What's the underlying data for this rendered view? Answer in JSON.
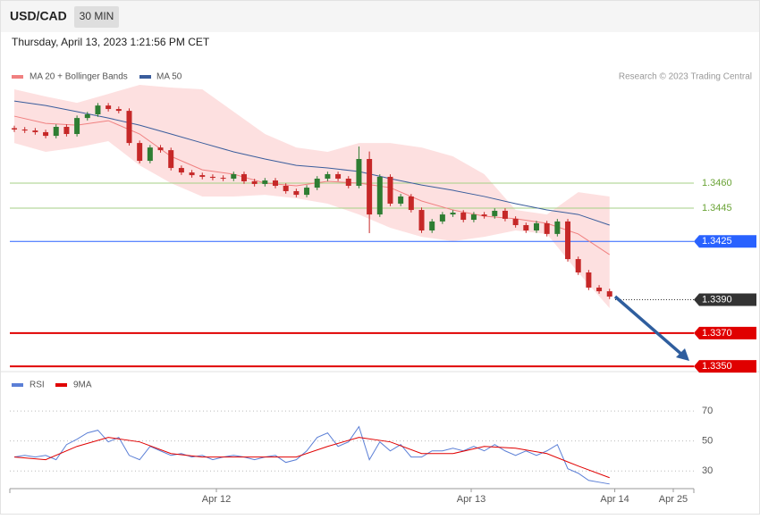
{
  "header": {
    "symbol": "USD/CAD",
    "interval": "30 MIN",
    "datetime": "Thursday, April 13, 2023 1:21:56 PM CET"
  },
  "chart_data": [
    {
      "type": "candlestick",
      "source": "Research © 2023 Trading Central",
      "ylim": [
        1.33474,
        1.3519
      ],
      "xlim": [
        -0.43,
        65.07
      ],
      "up_color": "#2e7d32",
      "down_color": "#c62828",
      "candles": {
        "open": [
          1.3493,
          1.34922,
          1.34916,
          1.34906,
          1.34884,
          1.34938,
          1.34895,
          1.34991,
          1.35013,
          1.35066,
          1.35045,
          1.35034,
          1.34841,
          1.34734,
          1.34814,
          1.34798,
          1.34691,
          1.34664,
          1.34648,
          1.34638,
          1.34632,
          1.34627,
          1.34654,
          1.34611,
          1.34595,
          1.34616,
          1.34584,
          1.34552,
          1.3453,
          1.34573,
          1.34627,
          1.34654,
          1.34627,
          1.34584,
          1.34745,
          1.34412,
          1.34638,
          1.34477,
          1.3452,
          1.34439,
          1.34316,
          1.3437,
          1.34412,
          1.34423,
          1.3438,
          1.34412,
          1.34402,
          1.34434,
          1.34386,
          1.34348,
          1.34316,
          1.34359,
          1.34295,
          1.3437,
          1.34144,
          1.34064,
          1.33973,
          1.33951
        ],
        "high": [
          1.34945,
          1.34937,
          1.34931,
          1.34921,
          1.34953,
          1.34953,
          1.35006,
          1.35028,
          1.35081,
          1.35081,
          1.3506,
          1.35049,
          1.34856,
          1.34829,
          1.34829,
          1.34813,
          1.34706,
          1.34679,
          1.34663,
          1.34653,
          1.34647,
          1.34669,
          1.34669,
          1.34626,
          1.34631,
          1.34631,
          1.34599,
          1.34567,
          1.34588,
          1.34642,
          1.34669,
          1.34669,
          1.34642,
          1.3482,
          1.3479,
          1.34653,
          1.34653,
          1.34535,
          1.34535,
          1.34454,
          1.34385,
          1.34427,
          1.34438,
          1.34438,
          1.34427,
          1.34427,
          1.34449,
          1.34449,
          1.34401,
          1.34363,
          1.34374,
          1.34374,
          1.34385,
          1.34385,
          1.34159,
          1.34079,
          1.33988,
          1.33966
        ],
        "low": [
          1.34907,
          1.34901,
          1.34891,
          1.34869,
          1.34869,
          1.3488,
          1.3488,
          1.34976,
          1.34998,
          1.3503,
          1.35019,
          1.34826,
          1.34719,
          1.34719,
          1.34783,
          1.34676,
          1.34649,
          1.34633,
          1.34623,
          1.34617,
          1.34612,
          1.34612,
          1.34596,
          1.3458,
          1.3458,
          1.34569,
          1.34537,
          1.34515,
          1.34515,
          1.34558,
          1.34612,
          1.34612,
          1.34569,
          1.34569,
          1.343,
          1.34397,
          1.34462,
          1.34462,
          1.34424,
          1.34301,
          1.34301,
          1.34355,
          1.34397,
          1.34365,
          1.34365,
          1.34387,
          1.34387,
          1.34371,
          1.34333,
          1.34301,
          1.34301,
          1.3428,
          1.3428,
          1.34129,
          1.34049,
          1.33958,
          1.33936,
          1.33904
        ],
        "close": [
          1.34922,
          1.34916,
          1.34906,
          1.34884,
          1.34938,
          1.34895,
          1.34991,
          1.35013,
          1.35066,
          1.35045,
          1.35034,
          1.34841,
          1.34734,
          1.34814,
          1.34798,
          1.34691,
          1.34664,
          1.34648,
          1.34638,
          1.34632,
          1.34627,
          1.34654,
          1.34611,
          1.34595,
          1.34616,
          1.34584,
          1.34552,
          1.3453,
          1.34573,
          1.34627,
          1.34654,
          1.34627,
          1.34584,
          1.34745,
          1.34412,
          1.34638,
          1.34477,
          1.3452,
          1.34439,
          1.34316,
          1.3437,
          1.34412,
          1.34423,
          1.3438,
          1.34412,
          1.34402,
          1.34434,
          1.34386,
          1.34348,
          1.34316,
          1.34359,
          1.34295,
          1.3437,
          1.34144,
          1.34064,
          1.33973,
          1.33951,
          1.33919
        ]
      },
      "overlay_x": [
        0,
        3,
        6,
        9,
        12,
        15,
        18,
        21,
        24,
        27,
        30,
        33,
        36,
        39,
        42,
        45,
        48,
        51,
        54,
        57
      ],
      "bands": {
        "color": "#fde0e0",
        "upper": [
          1.35163,
          1.3512,
          1.35082,
          1.35136,
          1.3519,
          1.35174,
          1.35163,
          1.35029,
          1.34895,
          1.34814,
          1.34788,
          1.34841,
          1.34841,
          1.34814,
          1.34761,
          1.34654,
          1.34439,
          1.34412,
          1.34546,
          1.3452
        ],
        "lower": [
          1.34841,
          1.34788,
          1.34814,
          1.34852,
          1.34707,
          1.346,
          1.3452,
          1.3452,
          1.3453,
          1.34509,
          1.34477,
          1.34412,
          1.34332,
          1.34278,
          1.34252,
          1.34278,
          1.34316,
          1.34295,
          1.34064,
          1.3385
        ]
      },
      "series": [
        {
          "name": "MA 20 + Bollinger Bands",
          "color": "#f08080",
          "values": [
            1.35002,
            1.34959,
            1.34948,
            1.34975,
            1.34895,
            1.34761,
            1.3468,
            1.34654,
            1.346,
            1.34584,
            1.34611,
            1.346,
            1.34573,
            1.34493,
            1.34439,
            1.34402,
            1.34386,
            1.34359,
            1.34295,
            1.34171
          ]
        },
        {
          "name": "MA 50",
          "color": "#3a5d9c",
          "values": [
            1.35093,
            1.35066,
            1.35029,
            1.34991,
            1.34948,
            1.34895,
            1.34841,
            1.34788,
            1.34745,
            1.34707,
            1.34691,
            1.3467,
            1.34627,
            1.34589,
            1.34557,
            1.3452,
            1.34477,
            1.34439,
            1.34412,
            1.34348
          ]
        }
      ],
      "levels": [
        {
          "value": 1.346,
          "label": "1.3460",
          "color": "#a5cf85",
          "text_color": "#6aa336",
          "boxed": false,
          "style": "solid"
        },
        {
          "value": 1.3445,
          "label": "1.3445",
          "color": "#a5cf85",
          "text_color": "#6aa336",
          "boxed": false,
          "style": "solid"
        },
        {
          "value": 1.3425,
          "label": "1.3425",
          "color": "#2962ff",
          "text_color": "#ffffff",
          "boxed": true,
          "style": "solid"
        },
        {
          "value": 1.339,
          "label": "1.3390",
          "color": "#333333",
          "text_color": "#ffffff",
          "boxed": true,
          "style": "dotted"
        },
        {
          "value": 1.337,
          "label": "1.3370",
          "color": "#e00000",
          "text_color": "#ffffff",
          "boxed": true,
          "style": "thick"
        },
        {
          "value": 1.335,
          "label": "1.3350",
          "color": "#e00000",
          "text_color": "#ffffff",
          "boxed": true,
          "style": "thick"
        }
      ]
    },
    {
      "type": "line",
      "ylim": [
        20,
        82
      ],
      "xlim": [
        -0.43,
        65.07
      ],
      "yticks": [
        70,
        50,
        30
      ],
      "grid": true,
      "xticks": [
        {
          "value": 19.35,
          "label": "Apr 12"
        },
        {
          "value": 43.75,
          "label": "Apr 13"
        },
        {
          "value": 57.5,
          "label": "Apr 14"
        },
        {
          "value": 63.1,
          "label": "Apr 25"
        }
      ],
      "series": [
        {
          "name": "RSI",
          "color": "#5b7fd6",
          "values": [
            39.3,
            40.4,
            39.3,
            40.4,
            37.5,
            47.6,
            51.2,
            55.4,
            57.2,
            49.4,
            52.4,
            40.4,
            37.5,
            46.4,
            43.4,
            40.4,
            41.6,
            39.3,
            40.4,
            37.5,
            39.3,
            40.4,
            39.3,
            37.5,
            39.3,
            40.4,
            35.7,
            37.5,
            43.4,
            52.4,
            55.4,
            46.4,
            49.4,
            59.6,
            37.5,
            49.4,
            43.4,
            47.6,
            39.3,
            39.3,
            43.4,
            43.4,
            45.2,
            43.4,
            46.4,
            43.4,
            47.6,
            43.4,
            40.4,
            43.4,
            40.4,
            43.4,
            47.6,
            31.5,
            28.5,
            23.7,
            22.5,
            21.3
          ]
        },
        {
          "name": "9MA",
          "color": "#e00000",
          "x": [
            0,
            3,
            6,
            9,
            12,
            15,
            18,
            21,
            24,
            27,
            30,
            33,
            36,
            39,
            42,
            45,
            48,
            51,
            54,
            57
          ],
          "values": [
            39.3,
            37.5,
            46.4,
            52.4,
            49.4,
            41.6,
            39.3,
            39.3,
            39.3,
            39.3,
            46.4,
            52.4,
            49.4,
            41.6,
            41.6,
            46.4,
            45.2,
            41.6,
            33.3,
            25.5
          ]
        }
      ]
    }
  ]
}
